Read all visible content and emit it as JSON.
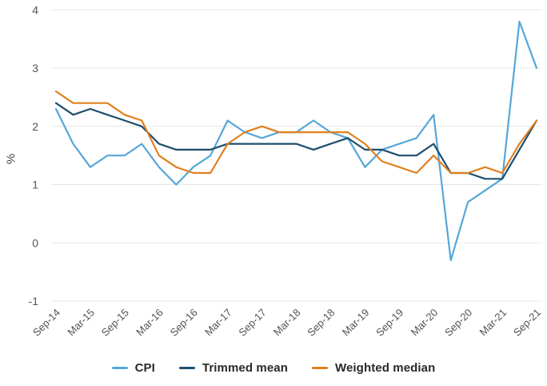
{
  "chart_data": {
    "type": "line",
    "title": "",
    "ylabel": "%",
    "xlabel": "",
    "ylim": [
      -1,
      4
    ],
    "yticks": [
      -1,
      0,
      1,
      2,
      3,
      4
    ],
    "grid": true,
    "legend_position": "bottom",
    "x_tick_labels_shown": [
      "Sep-14",
      "Mar-15",
      "Sep-15",
      "Mar-16",
      "Sep-16",
      "Mar-17",
      "Sep-17",
      "Mar-18",
      "Sep-18",
      "Mar-19",
      "Sep-19",
      "Mar-20",
      "Sep-20",
      "Mar-21",
      "Sep-21"
    ],
    "categories": [
      "Sep-14",
      "Dec-14",
      "Mar-15",
      "Jun-15",
      "Sep-15",
      "Dec-15",
      "Mar-16",
      "Jun-16",
      "Sep-16",
      "Dec-16",
      "Mar-17",
      "Jun-17",
      "Sep-17",
      "Dec-17",
      "Mar-18",
      "Jun-18",
      "Sep-18",
      "Dec-18",
      "Mar-19",
      "Jun-19",
      "Sep-19",
      "Dec-19",
      "Mar-20",
      "Jun-20",
      "Sep-20",
      "Dec-20",
      "Mar-21",
      "Jun-21",
      "Sep-21"
    ],
    "series": [
      {
        "name": "CPI",
        "color": "#55a7d9",
        "values": [
          2.3,
          1.7,
          1.3,
          1.5,
          1.5,
          1.7,
          1.3,
          1.0,
          1.3,
          1.5,
          2.1,
          1.9,
          1.8,
          1.9,
          1.9,
          2.1,
          1.9,
          1.8,
          1.3,
          1.6,
          1.7,
          1.8,
          2.2,
          -0.3,
          0.7,
          0.9,
          1.1,
          3.8,
          3.0
        ]
      },
      {
        "name": "Trimmed mean",
        "color": "#1d4e6e",
        "values": [
          2.4,
          2.2,
          2.3,
          2.2,
          2.1,
          2.0,
          1.7,
          1.6,
          1.6,
          1.6,
          1.7,
          1.7,
          1.7,
          1.7,
          1.7,
          1.6,
          1.7,
          1.8,
          1.6,
          1.6,
          1.5,
          1.5,
          1.7,
          1.2,
          1.2,
          1.1,
          1.1,
          1.6,
          2.1
        ]
      },
      {
        "name": "Weighted median",
        "color": "#e0801f",
        "values": [
          2.6,
          2.4,
          2.4,
          2.4,
          2.2,
          2.1,
          1.5,
          1.3,
          1.2,
          1.2,
          1.7,
          1.9,
          2.0,
          1.9,
          1.9,
          1.9,
          1.9,
          1.9,
          1.7,
          1.4,
          1.3,
          1.2,
          1.5,
          1.2,
          1.2,
          1.3,
          1.2,
          1.7,
          2.1
        ]
      }
    ]
  }
}
